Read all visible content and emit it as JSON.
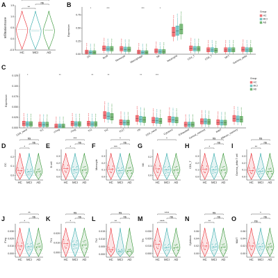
{
  "colors": {
    "HC": "#e8232b",
    "MCI": "#2aa6a6",
    "AD": "#2b8f2b"
  },
  "groups": [
    "HC",
    "MCI",
    "AD"
  ],
  "legend_title": "Group",
  "panel_letters": [
    "A",
    "B",
    "C",
    "D",
    "E",
    "F",
    "G",
    "H",
    "I",
    "J",
    "K",
    "L",
    "M",
    "N",
    "O"
  ],
  "chart_data": [
    {
      "panel": "A",
      "type": "violin",
      "ylabel": "InfiltrationScore",
      "categories": [
        "HC",
        "MCI",
        "AD"
      ],
      "y_ticks": [
        "-0.5",
        "0.0",
        "0.5",
        "1.0",
        "1.5"
      ],
      "ylim": [
        -0.5,
        1.5
      ],
      "medians": [
        0.43,
        0.36,
        0.38
      ],
      "comparisons": [
        {
          "pair": [
            "HC",
            "AD"
          ],
          "label": "*"
        },
        {
          "pair": [
            "HC",
            "MCI"
          ],
          "label": "**"
        },
        {
          "pair": [
            "MCI",
            "AD"
          ],
          "label": "ns"
        }
      ]
    },
    {
      "panel": "B",
      "type": "box",
      "ylabel": "Expression",
      "y_ticks": [
        "0.00",
        "0.25",
        "0.50",
        "0.75"
      ],
      "ylim": [
        0,
        0.9
      ],
      "categories": [
        "DC",
        "Bcell",
        "Monocyte",
        "Macrophage",
        "NK",
        "Neutrophil",
        "CD4_T",
        "CD8_T",
        "NKT",
        "Gamma_delta"
      ],
      "significance": [
        "*",
        "***",
        "",
        "***",
        "*",
        "",
        "",
        "",
        "",
        ""
      ],
      "medians_HC": [
        0.04,
        0.11,
        0.1,
        0.04,
        0.06,
        0.42,
        0.11,
        0.08,
        0.08,
        0.09
      ],
      "medians_MCI": [
        0.03,
        0.1,
        0.09,
        0.03,
        0.05,
        0.44,
        0.1,
        0.08,
        0.08,
        0.08
      ],
      "medians_AD": [
        0.03,
        0.1,
        0.09,
        0.03,
        0.05,
        0.47,
        0.1,
        0.07,
        0.08,
        0.08
      ]
    },
    {
      "panel": "C",
      "type": "box",
      "ylabel": "Expression",
      "y_ticks": [
        "0.000",
        "0.025",
        "0.050",
        "0.075",
        "0.100",
        "0.125"
      ],
      "ylim": [
        0,
        0.13
      ],
      "categories": [
        "CD8_naive",
        "Tc1",
        "nTreg",
        "iTreg",
        "Th1",
        "Th2",
        "Th17",
        "Tfh",
        "CD4_naive",
        "Cytotoxic",
        "Exhausted",
        "Central_memory",
        "MAIT",
        "Effector_memory"
      ],
      "significance": [
        "*",
        "",
        "**",
        "",
        "**",
        "**",
        "",
        "**",
        "***",
        "",
        "",
        "",
        "",
        ""
      ],
      "medians_HC": [
        0.01,
        0.008,
        0.004,
        0.01,
        0.01,
        0.03,
        0.013,
        0.022,
        0.018,
        0.02,
        0.008,
        0.015,
        0.013,
        0.022
      ],
      "medians_MCI": [
        0.009,
        0.008,
        0.004,
        0.009,
        0.009,
        0.028,
        0.012,
        0.02,
        0.017,
        0.019,
        0.008,
        0.015,
        0.012,
        0.021
      ],
      "medians_AD": [
        0.009,
        0.008,
        0.004,
        0.009,
        0.009,
        0.026,
        0.012,
        0.019,
        0.016,
        0.018,
        0.008,
        0.014,
        0.012,
        0.02
      ]
    },
    {
      "panel": "D",
      "type": "violin",
      "ylabel": "DC",
      "categories": [
        "HC",
        "MCI",
        "AD"
      ],
      "y_ticks": [
        "0.0",
        "0.1",
        "0.2"
      ],
      "ylim": [
        -0.05,
        0.28
      ],
      "medians": [
        0.05,
        0.04,
        0.04
      ],
      "comparisons": [
        {
          "pair": [
            "HC",
            "AD"
          ],
          "label": "ns"
        },
        {
          "pair": [
            "HC",
            "MCI"
          ],
          "label": "*"
        },
        {
          "pair": [
            "MCI",
            "AD"
          ],
          "label": "ns"
        }
      ]
    },
    {
      "panel": "E",
      "type": "violin",
      "ylabel": "B cell",
      "categories": [
        "HC",
        "MCI",
        "AD"
      ],
      "y_ticks": [
        "0.0",
        "0.1",
        "0.2",
        "0.3"
      ],
      "ylim": [
        -0.05,
        0.4
      ],
      "medians": [
        0.12,
        0.1,
        0.1
      ],
      "comparisons": [
        {
          "pair": [
            "HC",
            "AD"
          ],
          "label": "***"
        },
        {
          "pair": [
            "HC",
            "MCI"
          ],
          "label": "*"
        },
        {
          "pair": [
            "MCI",
            "AD"
          ],
          "label": "ns"
        }
      ]
    },
    {
      "panel": "F",
      "type": "violin",
      "ylabel": "Monocyte",
      "categories": [
        "HC",
        "MCI",
        "AD"
      ],
      "y_ticks": [
        "0.0",
        "0.1",
        "0.2",
        "0.3"
      ],
      "ylim": [
        -0.05,
        0.4
      ],
      "medians": [
        0.11,
        0.09,
        0.09
      ],
      "comparisons": [
        {
          "pair": [
            "HC",
            "AD"
          ],
          "label": "*"
        },
        {
          "pair": [
            "HC",
            "MCI"
          ],
          "label": "***"
        },
        {
          "pair": [
            "MCI",
            "AD"
          ],
          "label": "ns"
        }
      ]
    },
    {
      "panel": "G",
      "type": "violin",
      "ylabel": "NK",
      "categories": [
        "HC",
        "MCI",
        "AD"
      ],
      "y_ticks": [
        "0.0",
        "0.1",
        "0.2"
      ],
      "ylim": [
        -0.05,
        0.28
      ],
      "medians": [
        0.07,
        0.06,
        0.06
      ],
      "comparisons": [
        {
          "pair": [
            "HC",
            "AD"
          ],
          "label": "*"
        }
      ]
    },
    {
      "panel": "H",
      "type": "violin",
      "ylabel": "CD4_T",
      "categories": [
        "HC",
        "MCI",
        "AD"
      ],
      "y_ticks": [
        "0.0",
        "0.1",
        "0.2",
        "0.3"
      ],
      "ylim": [
        -0.05,
        0.4
      ],
      "medians": [
        0.11,
        0.1,
        0.1
      ],
      "comparisons": [
        {
          "pair": [
            "HC",
            "AD"
          ],
          "label": "ns"
        },
        {
          "pair": [
            "HC",
            "MCI"
          ],
          "label": "*"
        },
        {
          "pair": [
            "MCI",
            "AD"
          ],
          "label": "ns"
        }
      ]
    },
    {
      "panel": "I",
      "type": "violin",
      "ylabel": "Gamma_delta T cell",
      "categories": [
        "HC",
        "MCI",
        "AD"
      ],
      "y_ticks": [
        "0.0",
        "0.1",
        "0.2",
        "0.3"
      ],
      "ylim": [
        -0.05,
        0.4
      ],
      "medians": [
        0.09,
        0.08,
        0.08
      ],
      "comparisons": [
        {
          "pair": [
            "HC",
            "AD"
          ],
          "label": "ns"
        },
        {
          "pair": [
            "HC",
            "MCI"
          ],
          "label": "**"
        },
        {
          "pair": [
            "MCI",
            "AD"
          ],
          "label": "ns"
        }
      ]
    },
    {
      "panel": "J",
      "type": "violin",
      "ylabel": "iTreg",
      "categories": [
        "HC",
        "MCI",
        "AD"
      ],
      "y_ticks": [
        "0.000",
        "0.010",
        "0.020",
        "0.030"
      ],
      "ylim": [
        -0.005,
        0.04
      ],
      "medians": [
        0.01,
        0.009,
        0.009
      ],
      "comparisons": [
        {
          "pair": [
            "HC",
            "AD"
          ],
          "label": "**"
        },
        {
          "pair": [
            "HC",
            "MCI"
          ],
          "label": "*"
        },
        {
          "pair": [
            "MCI",
            "AD"
          ],
          "label": "ns"
        }
      ]
    },
    {
      "panel": "K",
      "type": "violin",
      "ylabel": "Th1",
      "categories": [
        "HC",
        "MCI",
        "AD"
      ],
      "y_ticks": [
        "0.000",
        "0.010",
        "0.020"
      ],
      "ylim": [
        -0.005,
        0.03
      ],
      "medians": [
        0.009,
        0.008,
        0.008
      ],
      "comparisons": [
        {
          "pair": [
            "HC",
            "AD"
          ],
          "label": "ns"
        },
        {
          "pair": [
            "HC",
            "MCI"
          ],
          "label": "*"
        },
        {
          "pair": [
            "MCI",
            "AD"
          ],
          "label": "ns"
        }
      ]
    },
    {
      "panel": "L",
      "type": "violin",
      "ylabel": "Th2",
      "categories": [
        "HC",
        "MCI",
        "AD"
      ],
      "y_ticks": [
        "0.000",
        "0.005",
        "0.010",
        "0.015"
      ],
      "ylim": [
        -0.002,
        0.02
      ],
      "medians": [
        0.003,
        0.002,
        0.002
      ],
      "comparisons": [
        {
          "pair": [
            "HC",
            "AD"
          ],
          "label": "ns"
        },
        {
          "pair": [
            "HC",
            "MCI"
          ],
          "label": "**"
        },
        {
          "pair": [
            "MCI",
            "AD"
          ],
          "label": "ns"
        }
      ]
    },
    {
      "panel": "M",
      "type": "violin",
      "ylabel": "Tfh",
      "categories": [
        "HC",
        "MCI",
        "AD"
      ],
      "y_ticks": [
        "0.000",
        "0.010",
        "0.020",
        "0.030"
      ],
      "ylim": [
        -0.005,
        0.04
      ],
      "medians": [
        0.012,
        0.008,
        0.008
      ],
      "comparisons": [
        {
          "pair": [
            "HC",
            "AD"
          ],
          "label": "****"
        },
        {
          "pair": [
            "HC",
            "MCI"
          ],
          "label": "****"
        },
        {
          "pair": [
            "MCI",
            "AD"
          ],
          "label": "ns"
        }
      ]
    },
    {
      "panel": "N",
      "type": "violin",
      "ylabel": "Cytotoxic",
      "categories": [
        "HC",
        "MCI",
        "AD"
      ],
      "y_ticks": [
        "0.00",
        "0.02",
        "0.04",
        "0.06"
      ],
      "ylim": [
        -0.01,
        0.08
      ],
      "medians": [
        0.02,
        0.017,
        0.017
      ],
      "comparisons": [
        {
          "pair": [
            "HC",
            "AD"
          ],
          "label": "ns"
        },
        {
          "pair": [
            "HC",
            "MCI"
          ],
          "label": "**"
        },
        {
          "pair": [
            "MCI",
            "AD"
          ],
          "label": "ns"
        }
      ]
    },
    {
      "panel": "O",
      "type": "violin",
      "ylabel": "MAIT",
      "categories": [
        "HC",
        "MCI",
        "AD"
      ],
      "y_ticks": [
        "0.00",
        "0.02",
        "0.04",
        "0.06"
      ],
      "ylim": [
        -0.01,
        0.08
      ],
      "medians": [
        0.02,
        0.018,
        0.018
      ],
      "comparisons": [
        {
          "pair": [
            "HC",
            "AD"
          ],
          "label": "*"
        },
        {
          "pair": [
            "HC",
            "MCI"
          ],
          "label": "ns"
        },
        {
          "pair": [
            "MCI",
            "AD"
          ],
          "label": "ns"
        }
      ]
    }
  ]
}
